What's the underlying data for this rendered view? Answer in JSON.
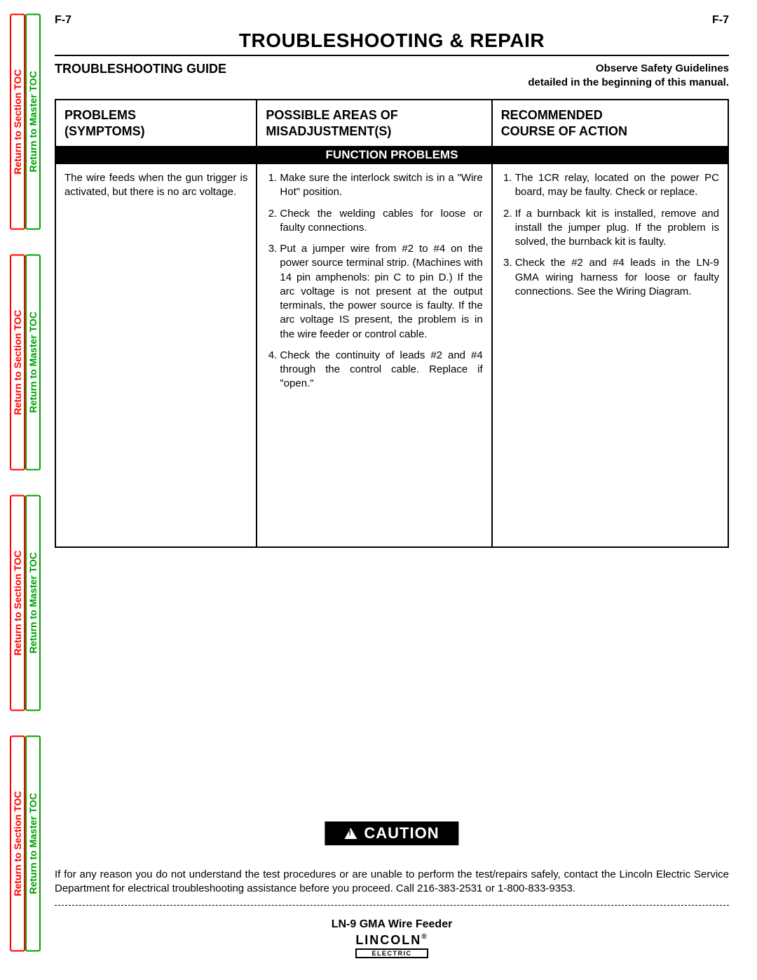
{
  "page_code": "F-7",
  "main_title": "TROUBLESHOOTING & REPAIR",
  "guide_title": "TROUBLESHOOTING GUIDE",
  "safety_line1": "Observe Safety Guidelines",
  "safety_line2": "detailed in the beginning of this manual.",
  "side_tabs": {
    "section_label": "Return to Section TOC",
    "master_label": "Return to Master TOC",
    "colors": {
      "section": "#ff0000",
      "master": "#00a000"
    }
  },
  "table": {
    "headers": {
      "col1_line1": "PROBLEMS",
      "col1_line2": "(SYMPTOMS)",
      "col2_line1": "POSSIBLE AREAS OF",
      "col2_line2": "MISADJUSTMENT(S)",
      "col3_line1": "RECOMMENDED",
      "col3_line2": "COURSE OF ACTION"
    },
    "section_label": "FUNCTION PROBLEMS",
    "row": {
      "symptom": "The wire feeds when the gun trigger is activated, but there is no arc voltage.",
      "misadjustments": [
        "Make sure the interlock switch is in a \"Wire Hot\" position.",
        "Check the welding cables for loose or faulty connections.",
        "Put a jumper wire from #2 to #4 on the power source terminal strip.  (Machines with 14 pin amphenols: pin C to pin D.)  If the arc voltage is not present at the output terminals, the power source is faulty.  If the arc voltage IS present, the problem is in the wire feeder or control cable.",
        "Check the continuity of leads #2 and #4 through the control cable.  Replace if \"open.\""
      ],
      "actions": [
        "The 1CR relay, located on the power PC board, may be faulty.  Check or replace.",
        "If a burnback kit is installed, remove and install the jumper plug.  If the problem is solved, the burnback kit is faulty.",
        "Check the #2 and #4 leads in the LN-9 GMA wiring harness for loose or faulty connections.  See the Wiring Diagram."
      ]
    }
  },
  "caution": {
    "label": "CAUTION",
    "text": "If for any reason you do not understand the test procedures or are unable to perform the test/repairs safely, contact the Lincoln Electric Service Department for electrical troubleshooting assistance before you proceed.  Call 216-383-2531 or 1-800-833-9353."
  },
  "footer": {
    "product": "LN-9 GMA Wire Feeder",
    "brand": "LINCOLN",
    "brand_sub": "ELECTRIC",
    "reg": "®"
  }
}
